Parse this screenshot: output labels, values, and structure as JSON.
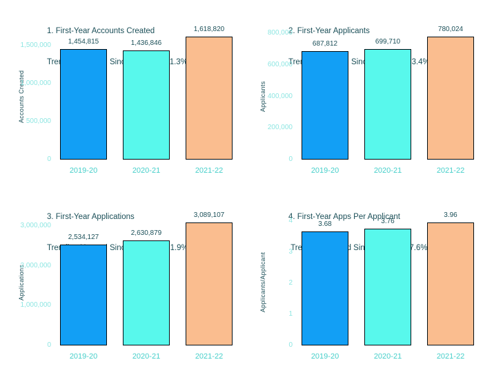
{
  "palette": {
    "bar_colors": [
      "#129ff5",
      "#58f8ec",
      "#fabd8f"
    ],
    "bar_border": "#000d14",
    "title_text": "#1b4f58",
    "value_label_text": "#1b4f58",
    "ytick_text": "#8ee6e2",
    "xtick_text": "#46cfca",
    "background": "#ffffff"
  },
  "chart_data": [
    {
      "type": "bar",
      "title": "1. First-Year Accounts Created",
      "subtitle": "Trending Upward Since 2019-20 (11.3%)",
      "trend_pct": "11.3%",
      "ylabel": "Accounts Created",
      "xlabel": "",
      "categories": [
        "2019-20",
        "2020-21",
        "2021-22"
      ],
      "values": [
        1454815,
        1436846,
        1618820
      ],
      "value_labels": [
        "1,454,815",
        "1,436,846",
        "1,618,820"
      ],
      "yticks": [
        {
          "value": 0,
          "label": "0"
        },
        {
          "value": 500000,
          "label": "500,000"
        },
        {
          "value": 1000000,
          "label": "1,000,000"
        },
        {
          "value": 1500000,
          "label": "1,500,000"
        }
      ],
      "ylim": [
        0,
        1664000
      ],
      "grid": false,
      "legend": "none"
    },
    {
      "type": "bar",
      "title": "2. First-Year Applicants",
      "subtitle": "Trending Upward Since 2019-20 (13.4%)",
      "trend_pct": "13.4%",
      "ylabel": "Applicants",
      "xlabel": "",
      "categories": [
        "2019-20",
        "2020-21",
        "2021-22"
      ],
      "values": [
        687812,
        699710,
        780024
      ],
      "value_labels": [
        "687,812",
        "699,710",
        "780,024"
      ],
      "yticks": [
        {
          "value": 0,
          "label": "0"
        },
        {
          "value": 200000,
          "label": "200,000"
        },
        {
          "value": 400000,
          "label": "400,000"
        },
        {
          "value": 600000,
          "label": "600,000"
        },
        {
          "value": 800000,
          "label": "800,000"
        }
      ],
      "ylim": [
        0,
        802000
      ],
      "grid": false,
      "legend": "none"
    },
    {
      "type": "bar",
      "title": "3. First-Year Applications",
      "subtitle": "Trending Upward Since 2019-20 (21.9%)",
      "trend_pct": "21.9%",
      "ylabel": "Applications",
      "xlabel": "",
      "categories": [
        "2019-20",
        "2020-21",
        "2021-22"
      ],
      "values": [
        2534127,
        2630879,
        3089107
      ],
      "value_labels": [
        "2,534,127",
        "2,630,879",
        "3,089,107"
      ],
      "yticks": [
        {
          "value": 0,
          "label": "0"
        },
        {
          "value": 1000000,
          "label": "1,000,000"
        },
        {
          "value": 2000000,
          "label": "2,000,000"
        },
        {
          "value": 3000000,
          "label": "3,000,000"
        }
      ],
      "ylim": [
        0,
        3176000
      ],
      "grid": false,
      "legend": "none"
    },
    {
      "type": "bar",
      "title": "4. First-Year Apps Per Applicant",
      "subtitle": " Trending Upward Since 2019-20 (7.6%)",
      "trend_pct": "7.6%",
      "ylabel": "Applicants/Applicant",
      "xlabel": "",
      "categories": [
        "2019-20",
        "2020-21",
        "2021-22"
      ],
      "values": [
        3.68,
        3.76,
        3.96
      ],
      "value_labels": [
        "3.68",
        "3.76",
        "3.96"
      ],
      "yticks": [
        {
          "value": 0,
          "label": "0"
        },
        {
          "value": 1,
          "label": "1"
        },
        {
          "value": 2,
          "label": "2"
        },
        {
          "value": 3,
          "label": "3"
        },
        {
          "value": 4,
          "label": "4"
        }
      ],
      "ylim": [
        0,
        4.07
      ],
      "grid": false,
      "legend": "none"
    }
  ]
}
